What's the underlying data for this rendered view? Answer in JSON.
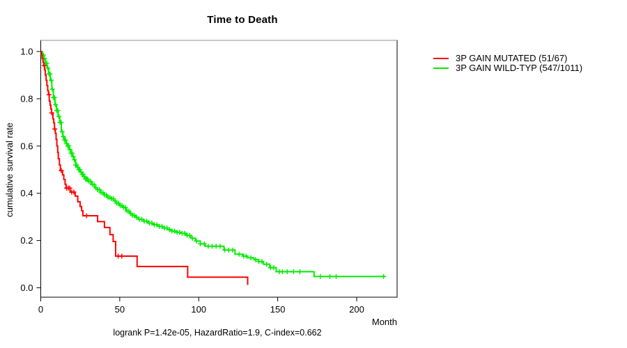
{
  "chart_data": {
    "type": "line",
    "subtype": "kaplan-meier-step",
    "title": "Time to Death",
    "xlabel": "Month",
    "ylabel": "cumulative survival rate",
    "footer": "logrank P=1.42e-05, HazardRatio=1.9, C-index=0.662",
    "xlim": [
      0,
      225
    ],
    "ylim": [
      0,
      1.0
    ],
    "grid": "off",
    "legend_position": "right-outside",
    "x_ticks": {
      "values": [
        0,
        50,
        100,
        150,
        200
      ],
      "labels": [
        "0",
        "50",
        "100",
        "150",
        "200"
      ]
    },
    "y_ticks": {
      "values": [
        0.0,
        0.2,
        0.4,
        0.6,
        0.8,
        1.0
      ],
      "labels": [
        "0.0",
        "0.2",
        "0.4",
        "0.6",
        "0.8",
        "1.0"
      ]
    },
    "series": [
      {
        "name": "3P GAIN MUTATED (51/67)",
        "color": "#ff0000",
        "events_total": "51/67",
        "end_time": 131,
        "points": [
          [
            0.4,
            0.985
          ],
          [
            0.9,
            0.97
          ],
          [
            1.4,
            0.955
          ],
          [
            1.9,
            0.94
          ],
          [
            2.4,
            0.922
          ],
          [
            2.9,
            0.9
          ],
          [
            3.4,
            0.878
          ],
          [
            3.9,
            0.856
          ],
          [
            4.4,
            0.834
          ],
          [
            4.9,
            0.817
          ],
          [
            5.4,
            0.79
          ],
          [
            5.9,
            0.773
          ],
          [
            6.4,
            0.756
          ],
          [
            6.9,
            0.74
          ],
          [
            7.7,
            0.715
          ],
          [
            8.2,
            0.698
          ],
          [
            8.7,
            0.672
          ],
          [
            9.2,
            0.654
          ],
          [
            9.7,
            0.628
          ],
          [
            10.2,
            0.6
          ],
          [
            10.7,
            0.573
          ],
          [
            11.1,
            0.546
          ],
          [
            11.8,
            0.52
          ],
          [
            12.4,
            0.496
          ],
          [
            13.8,
            0.478
          ],
          [
            14.6,
            0.458
          ],
          [
            15.4,
            0.438
          ],
          [
            16.0,
            0.422
          ],
          [
            18.6,
            0.405
          ],
          [
            21.8,
            0.388
          ],
          [
            23.4,
            0.364
          ],
          [
            24.9,
            0.344
          ],
          [
            25.9,
            0.326
          ],
          [
            26.7,
            0.305
          ],
          [
            36,
            0.28
          ],
          [
            40.3,
            0.255
          ],
          [
            43.8,
            0.225
          ],
          [
            45.8,
            0.196
          ],
          [
            47.4,
            0.134
          ],
          [
            61,
            0.09
          ],
          [
            93,
            0.045
          ],
          [
            131,
            0.012
          ]
        ],
        "censor_times": [
          2.2,
          5.3,
          6.9,
          8.9,
          13.0,
          16.3,
          17.4,
          18.4,
          19.6,
          20.9,
          29.0,
          49.0,
          51.3
        ]
      },
      {
        "name": "3P GAIN WILD-TYP (547/1011)",
        "color": "#00ee00",
        "events_total": "547/1011",
        "end_time": 218,
        "points": [
          [
            1,
            0.985
          ],
          [
            2,
            0.97
          ],
          [
            3,
            0.95
          ],
          [
            4,
            0.93
          ],
          [
            5,
            0.905
          ],
          [
            6,
            0.878
          ],
          [
            7,
            0.84
          ],
          [
            8,
            0.805
          ],
          [
            9,
            0.775
          ],
          [
            10,
            0.75
          ],
          [
            11,
            0.725
          ],
          [
            12,
            0.7
          ],
          [
            13,
            0.66
          ],
          [
            14,
            0.64
          ],
          [
            15,
            0.625
          ],
          [
            16,
            0.61
          ],
          [
            17,
            0.6
          ],
          [
            18,
            0.585
          ],
          [
            19,
            0.57
          ],
          [
            20,
            0.555
          ],
          [
            21,
            0.542
          ],
          [
            22,
            0.52
          ],
          [
            23,
            0.51
          ],
          [
            24,
            0.5
          ],
          [
            25,
            0.49
          ],
          [
            26,
            0.48
          ],
          [
            27,
            0.47
          ],
          [
            28,
            0.46
          ],
          [
            30,
            0.45
          ],
          [
            32,
            0.437
          ],
          [
            34,
            0.423
          ],
          [
            36,
            0.415
          ],
          [
            38,
            0.403
          ],
          [
            40,
            0.393
          ],
          [
            42,
            0.383
          ],
          [
            44,
            0.377
          ],
          [
            46,
            0.368
          ],
          [
            48,
            0.358
          ],
          [
            50,
            0.348
          ],
          [
            52,
            0.34
          ],
          [
            54,
            0.325
          ],
          [
            56,
            0.315
          ],
          [
            58,
            0.307
          ],
          [
            60,
            0.298
          ],
          [
            62,
            0.29
          ],
          [
            65,
            0.282
          ],
          [
            68,
            0.274
          ],
          [
            71,
            0.267
          ],
          [
            74,
            0.26
          ],
          [
            77,
            0.253
          ],
          [
            80,
            0.246
          ],
          [
            83,
            0.24
          ],
          [
            86,
            0.235
          ],
          [
            89,
            0.231
          ],
          [
            92,
            0.222
          ],
          [
            95,
            0.21
          ],
          [
            98,
            0.198
          ],
          [
            101,
            0.186
          ],
          [
            104,
            0.176
          ],
          [
            116,
            0.16
          ],
          [
            123,
            0.142
          ],
          [
            128,
            0.134
          ],
          [
            131,
            0.127
          ],
          [
            135,
            0.119
          ],
          [
            138,
            0.111
          ],
          [
            141,
            0.1
          ],
          [
            145,
            0.085
          ],
          [
            149,
            0.068
          ],
          [
            173,
            0.048
          ]
        ],
        "censor_times": [
          1.0,
          1.7,
          2.4,
          3.1,
          3.8,
          4.5,
          5.2,
          5.9,
          6.6,
          7.3,
          8.0,
          8.7,
          9.4,
          10.1,
          10.8,
          11.5,
          12.2,
          12.9,
          13.6,
          14.3,
          15.0,
          15.7,
          16.4,
          17.1,
          17.8,
          18.5,
          19.2,
          19.9,
          20.6,
          21.3,
          22.0,
          22.7,
          23.4,
          24.1,
          24.8,
          25.5,
          26.2,
          26.9,
          27.6,
          28.3,
          29.0,
          29.7,
          30.5,
          31.6,
          32.7,
          33.8,
          34.9,
          36.0,
          37.1,
          38.2,
          39.3,
          40.4,
          41.5,
          42.6,
          43.7,
          44.8,
          45.9,
          47.0,
          48.1,
          49.2,
          50.3,
          51.4,
          52.5,
          53.6,
          54.7,
          55.8,
          56.9,
          58.0,
          59.1,
          60.7,
          62.3,
          63.9,
          65.5,
          67.1,
          68.7,
          70.3,
          71.9,
          73.5,
          75.1,
          76.7,
          78.3,
          79.9,
          81.5,
          83.1,
          84.7,
          86.3,
          87.9,
          89.5,
          91.1,
          92.7,
          94.3,
          96.0,
          98.5,
          101.0,
          103.5,
          106.0,
          108.5,
          111.0,
          113.5,
          116.5,
          119.0,
          121.5,
          125.5,
          128.5,
          130.0,
          133.0,
          136.0,
          138.0,
          140.0,
          143.0,
          145.5,
          147.5,
          151.0,
          153.0,
          156.0,
          160.0,
          164.0,
          177.0,
          183.0,
          187.0,
          217.0
        ]
      }
    ]
  }
}
